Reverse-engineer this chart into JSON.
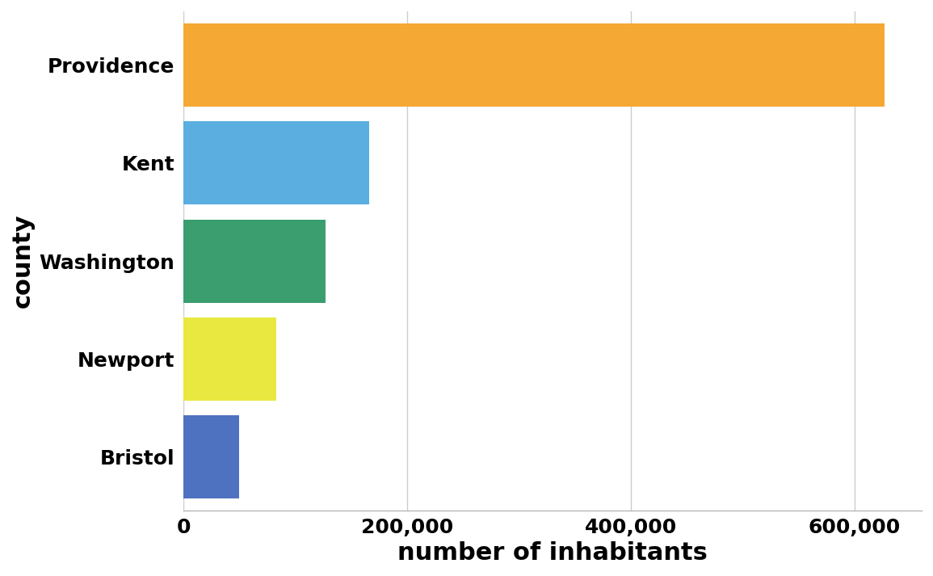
{
  "counties": [
    "Providence",
    "Kent",
    "Washington",
    "Newport",
    "Bristol"
  ],
  "values": [
    626667,
    166158,
    126979,
    82888,
    49875
  ],
  "colors": [
    "#F5A833",
    "#5AAFE0",
    "#3A9E6F",
    "#E8E840",
    "#4F72C0"
  ],
  "xlabel": "number of inhabitants",
  "ylabel": "county",
  "xlim": [
    0,
    660000
  ],
  "xticks": [
    0,
    200000,
    400000,
    600000
  ],
  "background_color": "#ffffff",
  "bar_height": 0.85,
  "grid_color": "#cccccc",
  "fontsize_ticks": 18,
  "fontsize_label": 22
}
